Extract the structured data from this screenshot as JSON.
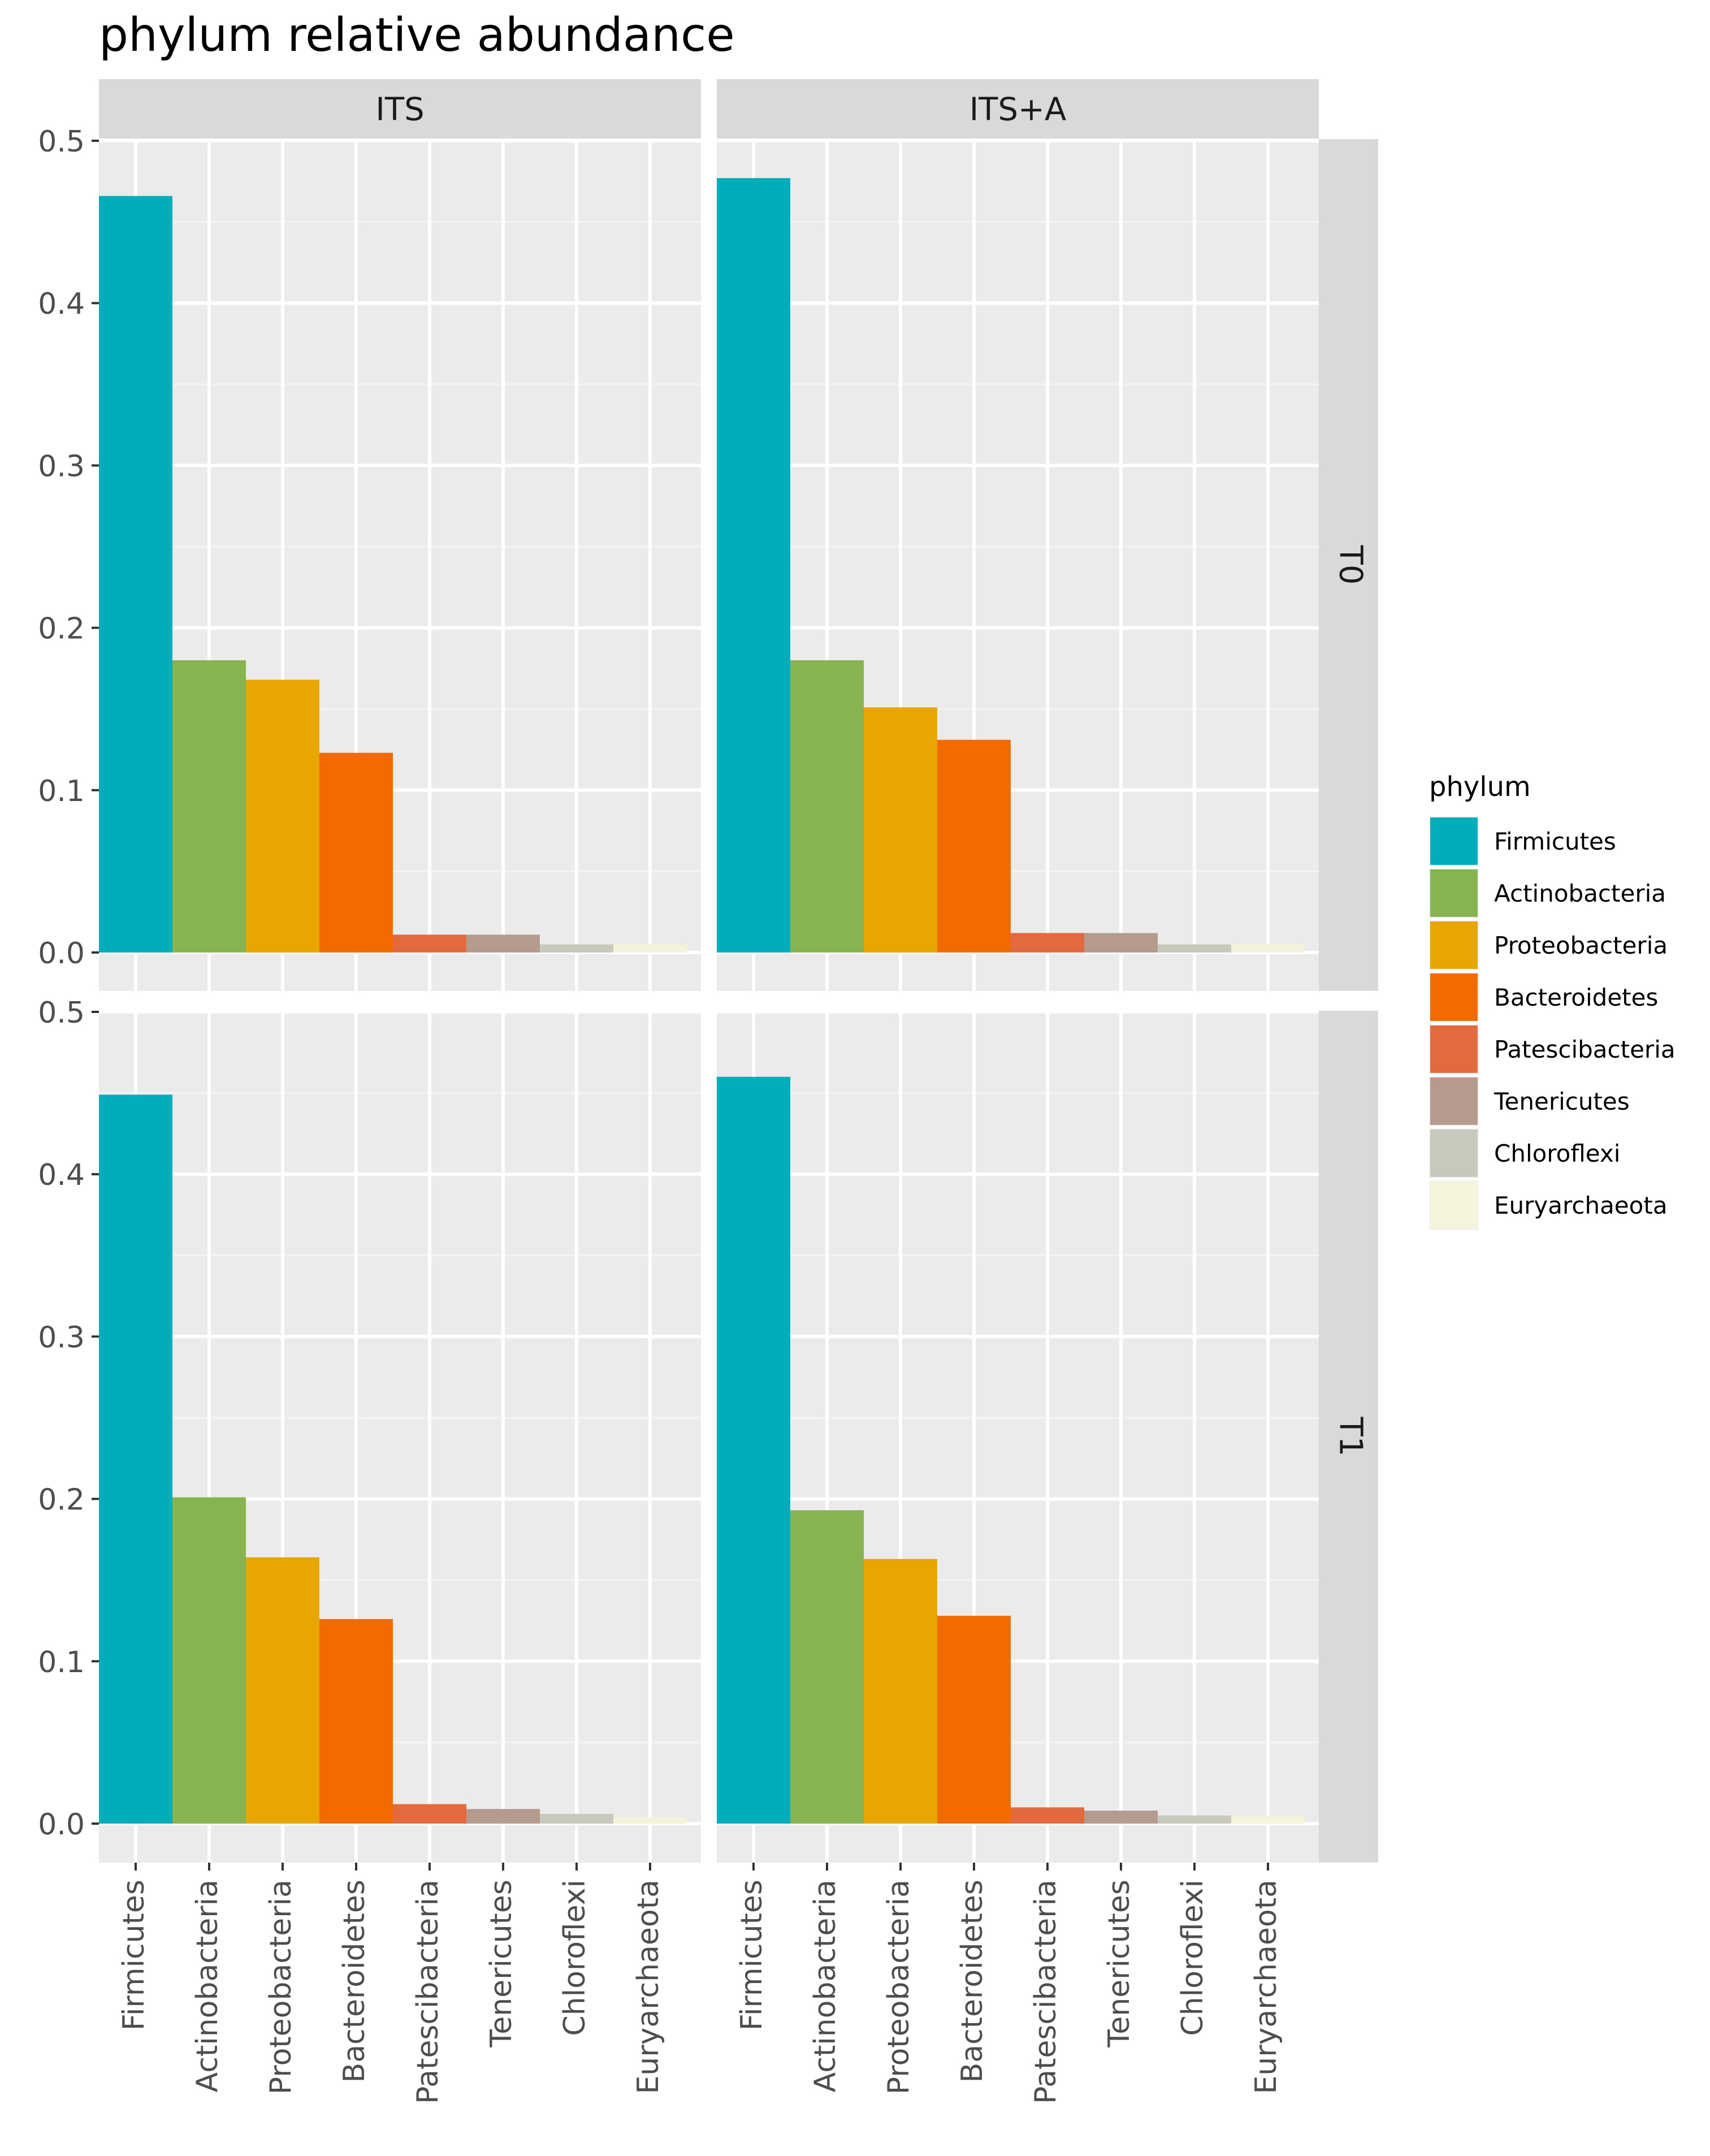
{
  "chart_data": {
    "type": "bar",
    "title": "phylum relative abundance",
    "xlabel": "",
    "ylabel": "",
    "ylim": [
      0,
      0.5
    ],
    "y_ticks": [
      "0.0",
      "0.1",
      "0.2",
      "0.3",
      "0.4",
      "0.5"
    ],
    "grid": true,
    "facet_columns": [
      "ITS",
      "ITS+A"
    ],
    "facet_rows": [
      "T0",
      "T1"
    ],
    "categories": [
      "Firmicutes",
      "Actinobacteria",
      "Proteobacteria",
      "Bacteroidetes",
      "Patescibacteria",
      "Tenericutes",
      "Chloroflexi",
      "Euryarchaeota"
    ],
    "colors": [
      "#00AEBB",
      "#87B350",
      "#E8A700",
      "#F26B00",
      "#E36A3C",
      "#B59A8E",
      "#C8C8BC",
      "#F4F3DC"
    ],
    "panels": [
      {
        "column": "ITS",
        "row": "T0",
        "values": [
          0.466,
          0.18,
          0.168,
          0.123,
          0.011,
          0.011,
          0.005,
          0.005
        ]
      },
      {
        "column": "ITS+A",
        "row": "T0",
        "values": [
          0.477,
          0.18,
          0.151,
          0.131,
          0.012,
          0.012,
          0.005,
          0.005
        ]
      },
      {
        "column": "ITS",
        "row": "T1",
        "values": [
          0.449,
          0.201,
          0.164,
          0.126,
          0.012,
          0.009,
          0.006,
          0.004
        ]
      },
      {
        "column": "ITS+A",
        "row": "T1",
        "values": [
          0.46,
          0.193,
          0.163,
          0.128,
          0.01,
          0.008,
          0.005,
          0.005
        ]
      }
    ],
    "legend": {
      "title": "phylum",
      "position": "right",
      "entries": [
        "Firmicutes",
        "Actinobacteria",
        "Proteobacteria",
        "Bacteroidetes",
        "Patescibacteria",
        "Tenericutes",
        "Chloroflexi",
        "Euryarchaeota"
      ]
    }
  }
}
